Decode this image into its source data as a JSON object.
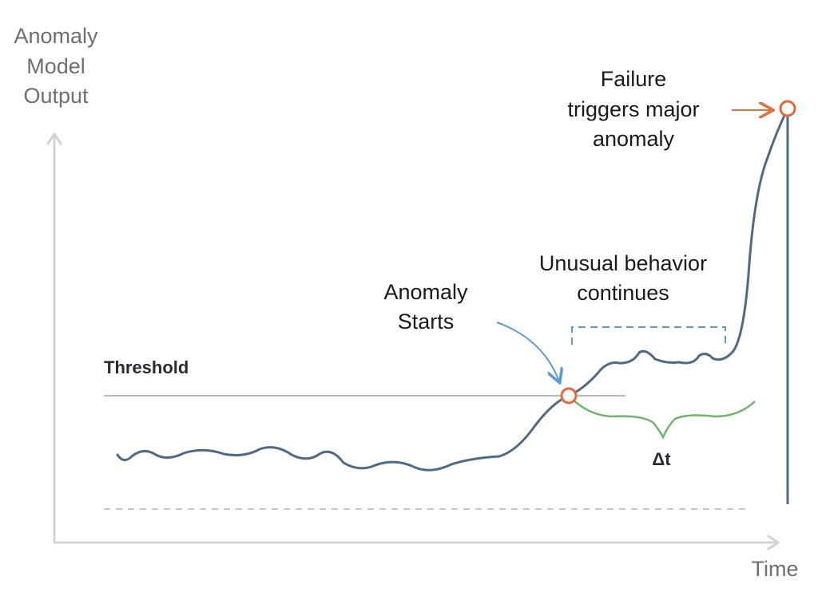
{
  "y_axis_label": [
    "Anomaly",
    "Model",
    "Output"
  ],
  "x_axis_label": "Time",
  "threshold_label": "Threshold",
  "anomaly_start_label": [
    "Anomaly",
    "Starts"
  ],
  "unusual_label": [
    "Unusual behavior",
    "continues"
  ],
  "failure_label": [
    "Failure",
    "triggers major",
    "anomaly"
  ],
  "delta_label": "Δt"
}
